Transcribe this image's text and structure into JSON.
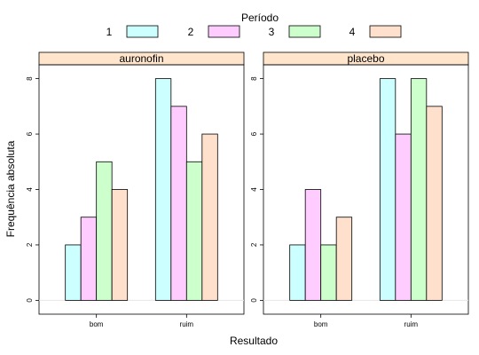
{
  "chart_data": {
    "type": "bar",
    "legend": {
      "title": "Período",
      "placement": "top",
      "entries": [
        {
          "label": "1",
          "color": "#ccffff"
        },
        {
          "label": "2",
          "color": "#ffccff"
        },
        {
          "label": "3",
          "color": "#ccffcc"
        },
        {
          "label": "4",
          "color": "#ffe0cc"
        }
      ]
    },
    "xlabel": "Resultado",
    "ylabel": "Frequência absoluta",
    "ylim": [
      -0.5,
      8.5
    ],
    "yticks": [
      "0",
      "2",
      "4",
      "6",
      "8"
    ],
    "strip_color": "#ffe5cc",
    "categories": [
      "bom",
      "ruim"
    ],
    "panels": [
      {
        "name": "auronofin",
        "series": [
          {
            "name": "1",
            "values": [
              2,
              8
            ]
          },
          {
            "name": "2",
            "values": [
              3,
              7
            ]
          },
          {
            "name": "3",
            "values": [
              5,
              5
            ]
          },
          {
            "name": "4",
            "values": [
              4,
              6
            ]
          }
        ]
      },
      {
        "name": "placebo",
        "series": [
          {
            "name": "1",
            "values": [
              2,
              8
            ]
          },
          {
            "name": "2",
            "values": [
              4,
              6
            ]
          },
          {
            "name": "3",
            "values": [
              2,
              8
            ]
          },
          {
            "name": "4",
            "values": [
              3,
              7
            ]
          }
        ]
      }
    ]
  }
}
